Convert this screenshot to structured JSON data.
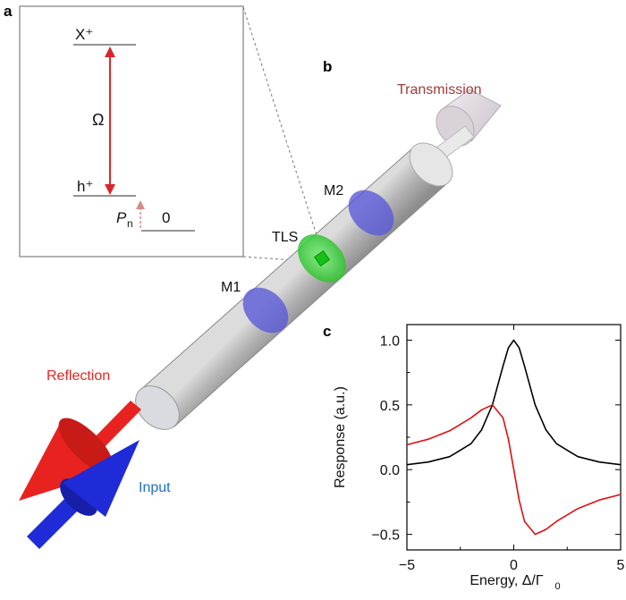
{
  "panels": {
    "a": {
      "letter": "a",
      "levels": {
        "top": "X⁺",
        "mid": "h⁺",
        "bottom": "0"
      },
      "rabi_label": "Ω",
      "pn_label": "P",
      "pn_sub": "n"
    },
    "b": {
      "letter": "b",
      "labels": {
        "transmission": "Transmission",
        "reflection": "Reflection",
        "input": "Input",
        "tls": "TLS",
        "m1": "M1",
        "m2": "M2"
      }
    },
    "c": {
      "letter": "c"
    }
  },
  "colors": {
    "reflection": "#e8231f",
    "input": "#1f2bd6",
    "transmission_label": "#a23a3a",
    "mirror": "#5a5ad8",
    "tls": "#2fc42f",
    "rabi_arrow": "#d9262c",
    "pn_arrow": "#d88a8a",
    "curve_black": "#000000",
    "curve_red": "#e01010"
  },
  "chart_data": {
    "type": "line",
    "xlabel": "Energy, Δ/Γ",
    "xlabel_sub": "0",
    "ylabel": "Response (a.u.)",
    "xlim": [
      -5,
      5
    ],
    "ylim": [
      -0.62,
      1.12
    ],
    "xticks": [
      {
        "value": -5,
        "label": "−5"
      },
      {
        "value": 0,
        "label": "0"
      },
      {
        "value": 5,
        "label": "5"
      }
    ],
    "yticks": [
      {
        "value": -0.5,
        "label": "−0.5"
      },
      {
        "value": 0.0,
        "label": "0.0"
      },
      {
        "value": 0.5,
        "label": "0.5"
      },
      {
        "value": 1.0,
        "label": "1.0"
      }
    ],
    "series": [
      {
        "color": "#000000",
        "x": [
          -5,
          -4,
          -3,
          -2,
          -1.5,
          -1,
          -0.5,
          -0.25,
          0,
          0.25,
          0.5,
          1,
          1.5,
          2,
          3,
          4,
          5
        ],
        "y": [
          0.038,
          0.059,
          0.1,
          0.2,
          0.308,
          0.5,
          0.8,
          0.941,
          1.0,
          0.941,
          0.8,
          0.5,
          0.308,
          0.2,
          0.1,
          0.059,
          0.038
        ]
      },
      {
        "color": "#e01010",
        "x": [
          -5,
          -4,
          -3,
          -2,
          -1.5,
          -1,
          -0.5,
          -0.25,
          0,
          0.25,
          0.5,
          1,
          1.5,
          2,
          3,
          4,
          5
        ],
        "y": [
          0.192,
          0.235,
          0.3,
          0.4,
          0.462,
          0.5,
          0.4,
          0.235,
          0.0,
          -0.235,
          -0.4,
          -0.5,
          -0.462,
          -0.4,
          -0.3,
          -0.235,
          -0.192
        ]
      }
    ]
  }
}
